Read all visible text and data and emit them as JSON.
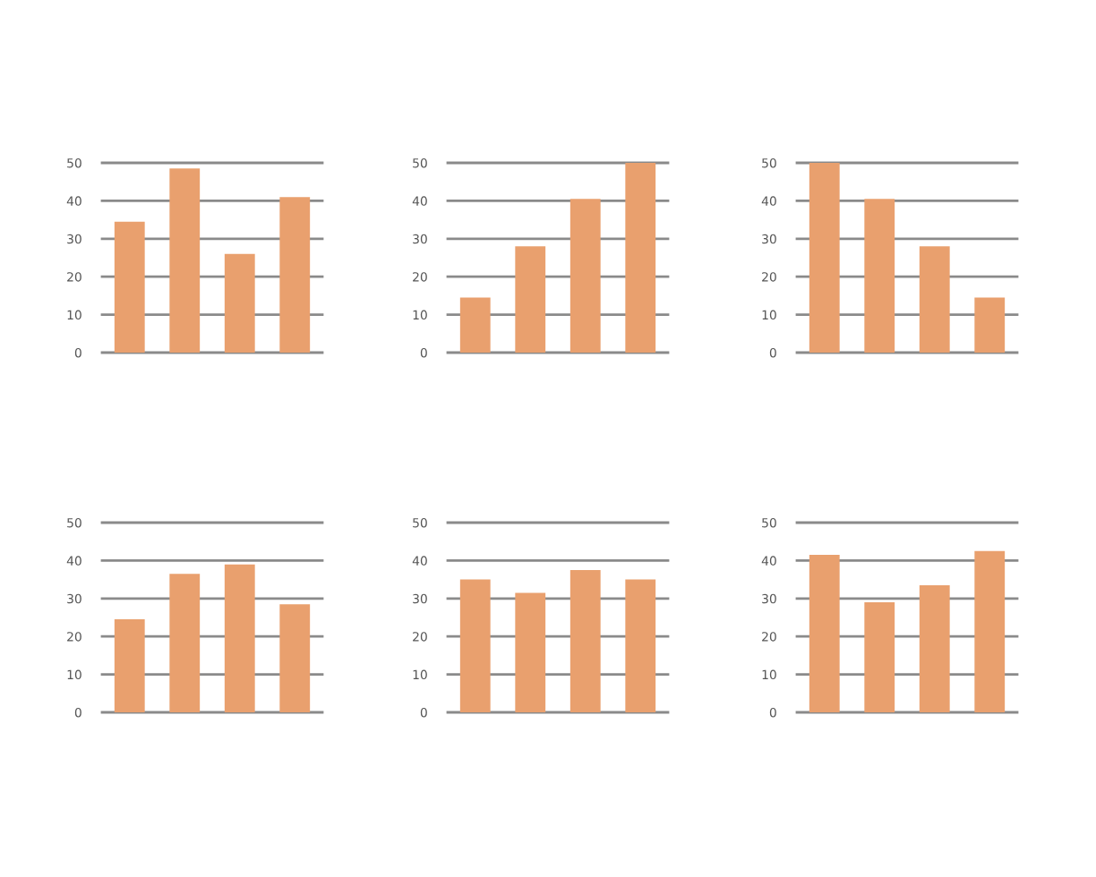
{
  "chart_data": [
    {
      "type": "bar",
      "categories": [
        null,
        null,
        null,
        null
      ],
      "values": [
        34.5,
        48.5,
        26,
        41
      ],
      "color": "#e9a06e",
      "ylim": [
        0,
        50
      ],
      "yticks": [
        0,
        10,
        20,
        30,
        40,
        50
      ],
      "grid": "y",
      "tick_labels": "y"
    },
    {
      "type": "bar",
      "categories": [
        null,
        null,
        null,
        null
      ],
      "values": [
        14.5,
        28,
        40.5,
        50
      ],
      "color": "#e9a06e",
      "ylim": [
        0,
        50
      ],
      "yticks": [
        0,
        10,
        20,
        30,
        40,
        50
      ],
      "grid": "y",
      "tick_labels": "y"
    },
    {
      "type": "bar",
      "categories": [
        null,
        null,
        null,
        null
      ],
      "values": [
        50,
        40.5,
        28,
        14.5
      ],
      "color": "#e9a06e",
      "ylim": [
        0,
        50
      ],
      "yticks": [
        0,
        10,
        20,
        30,
        40,
        50
      ],
      "grid": "y",
      "tick_labels": "y"
    },
    {
      "type": "bar",
      "categories": [
        null,
        null,
        null,
        null
      ],
      "values": [
        24.5,
        36.5,
        39,
        28.5
      ],
      "color": "#e9a06e",
      "ylim": [
        0,
        50
      ],
      "yticks": [
        0,
        10,
        20,
        30,
        40,
        50
      ],
      "grid": "y",
      "tick_labels": "y"
    },
    {
      "type": "bar",
      "categories": [
        null,
        null,
        null,
        null
      ],
      "values": [
        35,
        31.5,
        37.5,
        35
      ],
      "color": "#e9a06e",
      "ylim": [
        0,
        50
      ],
      "yticks": [
        0,
        10,
        20,
        30,
        40,
        50
      ],
      "grid": "y",
      "tick_labels": "y"
    },
    {
      "type": "bar",
      "categories": [
        null,
        null,
        null,
        null
      ],
      "values": [
        41.5,
        29,
        33.5,
        42.5
      ],
      "color": "#e9a06e",
      "ylim": [
        0,
        50
      ],
      "yticks": [
        0,
        10,
        20,
        30,
        40,
        50
      ],
      "grid": "y",
      "tick_labels": "y"
    }
  ]
}
